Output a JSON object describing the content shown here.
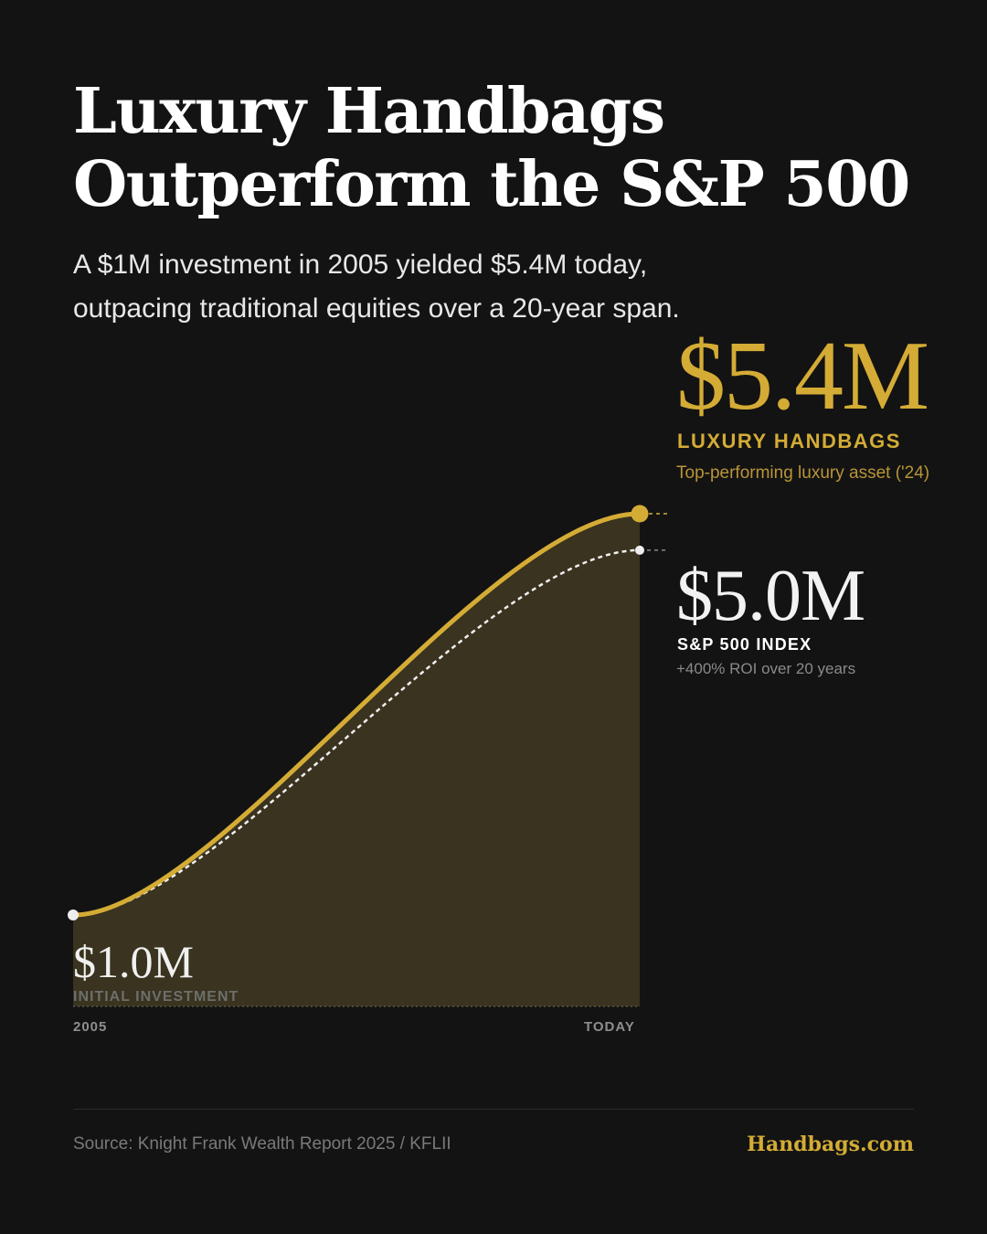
{
  "header": {
    "title_line1": "Luxury Handbags",
    "title_line2": "Outperform the S&P 500",
    "subtitle_line1": "A $1M investment in 2005 yielded $5.4M today,",
    "subtitle_line2": "outpacing traditional equities over a 20-year span."
  },
  "callouts": {
    "luxury": {
      "value": "$5.4M",
      "name": "LUXURY HANDBAGS",
      "note": "Top-performing luxury asset ('24)"
    },
    "sp500": {
      "value": "$5.0M",
      "name": "S&P 500 INDEX",
      "note": "+400% ROI over 20 years"
    },
    "start": {
      "value": "$1.0M",
      "label": "INITIAL INVESTMENT"
    }
  },
  "chart_data": {
    "type": "area",
    "x": [
      "2005",
      "TODAY"
    ],
    "series": [
      {
        "name": "LUXURY HANDBAGS",
        "values": [
          1.0,
          5.4
        ],
        "color": "#d4ac35",
        "style": "solid",
        "filled": true
      },
      {
        "name": "S&P 500 INDEX",
        "values": [
          1.0,
          5.0
        ],
        "color": "#f0f0f0",
        "style": "dotted",
        "filled": false
      }
    ],
    "unit": "$M",
    "curve": "s-shaped",
    "ylim": [
      0,
      5.4
    ],
    "grid": false,
    "legend": "direct labels right",
    "colors": {
      "background": "#131313",
      "accent": "#d4ac35",
      "area_fill": "#39331f"
    }
  },
  "footer": {
    "source": "Source: Knight Frank Wealth Report 2025 / KFLII",
    "brand": "Handbags.com"
  }
}
